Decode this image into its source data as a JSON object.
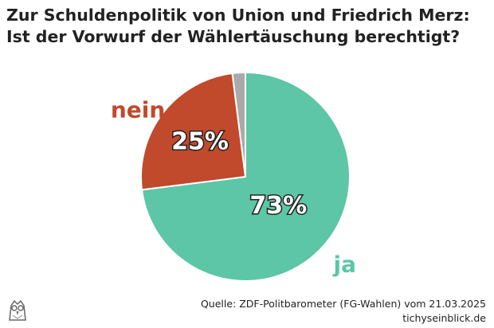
{
  "title": {
    "line1": "Zur Schuldenpolitik von Union und Friedrich Merz:",
    "line2": "Ist der Vorwurf der Wählertäuschung berechtigt?"
  },
  "chart_data": {
    "type": "pie",
    "title": "Zur Schuldenpolitik von Union und Friedrich Merz: Ist der Vorwurf der Wählertäuschung berechtigt?",
    "unit": "%",
    "slices": [
      {
        "label": "ja",
        "value": 73,
        "value_label": "73%",
        "color": "#5cc6a7"
      },
      {
        "label": "nein",
        "value": 25,
        "value_label": "25%",
        "color": "#c1492c"
      },
      {
        "label": "",
        "value": 2,
        "value_label": "",
        "color": "#aaaaaa"
      }
    ],
    "legend": "none",
    "grid": false
  },
  "footer": {
    "source": "Quelle: ZDF-Politbarometer (FG-Wahlen) vom 21.03.2025",
    "site": "tichyseinblick.de"
  },
  "logo": {
    "icon": "owl-icon"
  }
}
